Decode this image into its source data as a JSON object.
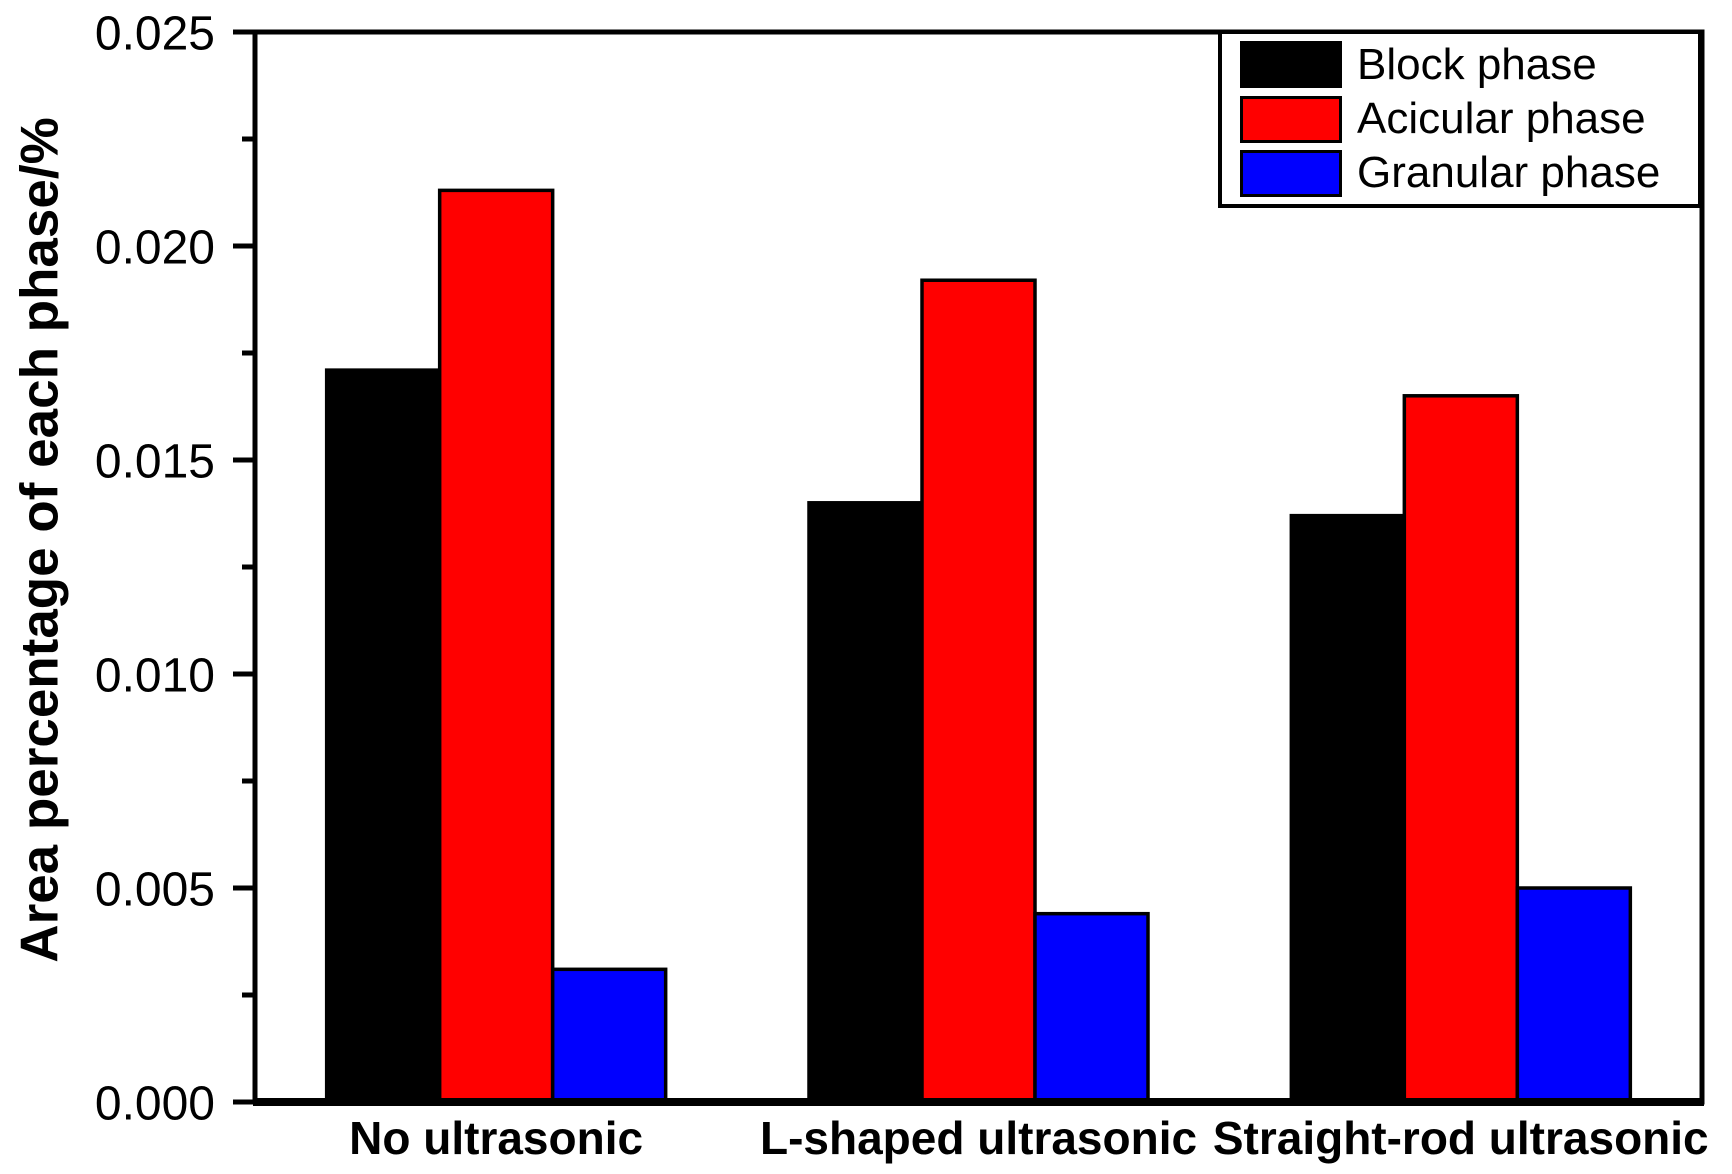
{
  "figure": {
    "background": "#ffffff",
    "axis_color": "#000000",
    "text_color": "#000000"
  },
  "chart_data": {
    "type": "bar",
    "title": "",
    "xlabel": "",
    "ylabel": "Area percentage of each phase/%",
    "ylim": [
      0,
      0.025
    ],
    "y_major_tick_step": 0.005,
    "y_minor_tick_step": 0.0025,
    "y_tick_labels": [
      "0.000",
      "0.005",
      "0.010",
      "0.015",
      "0.020",
      "0.025"
    ],
    "grid": "off",
    "legend_position": "top-right-inside",
    "categories": [
      "No ultrasonic",
      "L-shaped ultrasonic",
      "Straight-rod ultrasonic"
    ],
    "series": [
      {
        "name": "Block phase",
        "color": "#000000",
        "values": [
          0.0171,
          0.014,
          0.0137
        ]
      },
      {
        "name": "Acicular phase",
        "color": "#ff0000",
        "values": [
          0.0213,
          0.0192,
          0.0165
        ]
      },
      {
        "name": "Granular phase",
        "color": "#0000ff",
        "values": [
          0.0031,
          0.0044,
          0.005
        ]
      }
    ]
  }
}
